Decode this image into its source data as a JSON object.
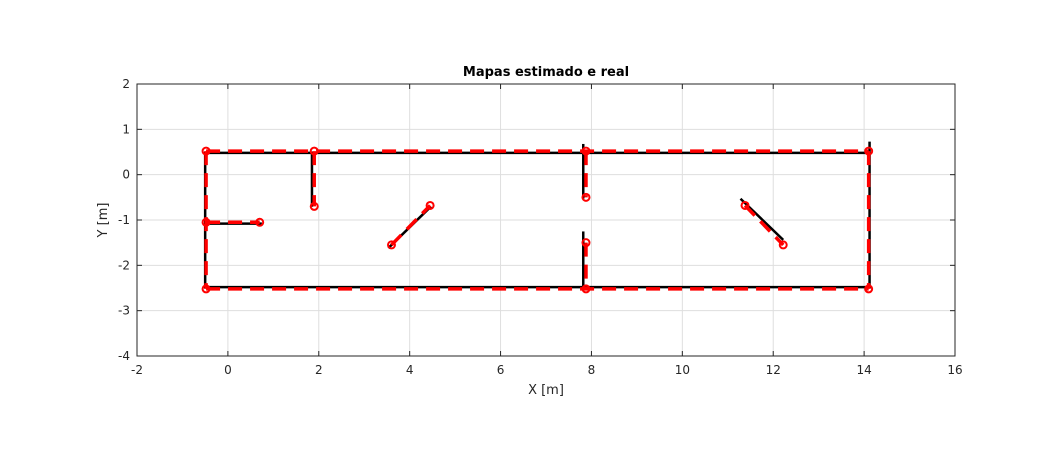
{
  "chart_data": {
    "type": "line",
    "title": "Mapas estimado e real",
    "xlabel": "X [m]",
    "ylabel": "Y [m]",
    "xlim": [
      -2,
      16
    ],
    "ylim": [
      -4,
      2
    ],
    "xticks": [
      "-2",
      "0",
      "2",
      "4",
      "6",
      "8",
      "10",
      "12",
      "14",
      "16"
    ],
    "yticks": [
      "-4",
      "-3",
      "-2",
      "-1",
      "0",
      "1",
      "2"
    ],
    "grid": true,
    "legend": "none",
    "colors": {
      "real": "#000000",
      "estimated": "#ff0000",
      "grid": "#dedede",
      "axes": "#262626"
    },
    "series": [
      {
        "style": "solid-black",
        "segments": [
          [
            [
              -0.5,
              0.48
            ],
            [
              14.12,
              0.48
            ]
          ],
          [
            [
              -0.5,
              -2.48
            ],
            [
              14.12,
              -2.48
            ]
          ],
          [
            [
              -0.5,
              0.48
            ],
            [
              -0.5,
              -2.48
            ]
          ],
          [
            [
              14.12,
              0.7
            ],
            [
              14.12,
              -2.48
            ]
          ],
          [
            [
              -0.5,
              -1.08
            ],
            [
              0.72,
              -1.08
            ]
          ],
          [
            [
              1.85,
              0.48
            ],
            [
              1.85,
              -0.68
            ]
          ],
          [
            [
              7.82,
              0.65
            ],
            [
              7.82,
              -0.5
            ]
          ],
          [
            [
              7.82,
              -1.28
            ],
            [
              7.82,
              -2.48
            ]
          ],
          [
            [
              3.55,
              -1.6
            ],
            [
              4.45,
              -0.72
            ]
          ],
          [
            [
              11.3,
              -0.55
            ],
            [
              12.2,
              -1.42
            ]
          ]
        ]
      },
      {
        "style": "dashed-red-circle-markers",
        "segments": [
          [
            [
              -0.48,
              0.52
            ],
            [
              14.1,
              0.52
            ]
          ],
          [
            [
              -0.48,
              -2.52
            ],
            [
              14.1,
              -2.52
            ]
          ],
          [
            [
              -0.48,
              0.52
            ],
            [
              -0.48,
              -2.52
            ]
          ],
          [
            [
              14.1,
              0.52
            ],
            [
              14.1,
              -2.52
            ]
          ],
          [
            [
              -0.48,
              -1.05
            ],
            [
              0.7,
              -1.05
            ]
          ],
          [
            [
              1.9,
              0.52
            ],
            [
              1.9,
              -0.7
            ]
          ],
          [
            [
              7.88,
              0.52
            ],
            [
              7.88,
              -0.5
            ]
          ],
          [
            [
              7.88,
              -1.5
            ],
            [
              7.88,
              -2.52
            ]
          ],
          [
            [
              3.6,
              -1.55
            ],
            [
              4.45,
              -0.68
            ]
          ],
          [
            [
              11.38,
              -0.68
            ],
            [
              12.22,
              -1.55
            ]
          ]
        ],
        "markers": [
          [
            -0.48,
            0.52
          ],
          [
            1.9,
            0.52
          ],
          [
            7.88,
            0.52
          ],
          [
            14.1,
            0.52
          ],
          [
            -0.48,
            -1.05
          ],
          [
            0.7,
            -1.05
          ],
          [
            1.9,
            -0.7
          ],
          [
            7.88,
            -0.5
          ],
          [
            7.88,
            -1.5
          ],
          [
            4.45,
            -0.68
          ],
          [
            3.6,
            -1.55
          ],
          [
            11.38,
            -0.68
          ],
          [
            12.22,
            -1.55
          ],
          [
            -0.48,
            -2.52
          ],
          [
            7.88,
            -2.52
          ],
          [
            14.1,
            -2.52
          ]
        ]
      }
    ]
  }
}
